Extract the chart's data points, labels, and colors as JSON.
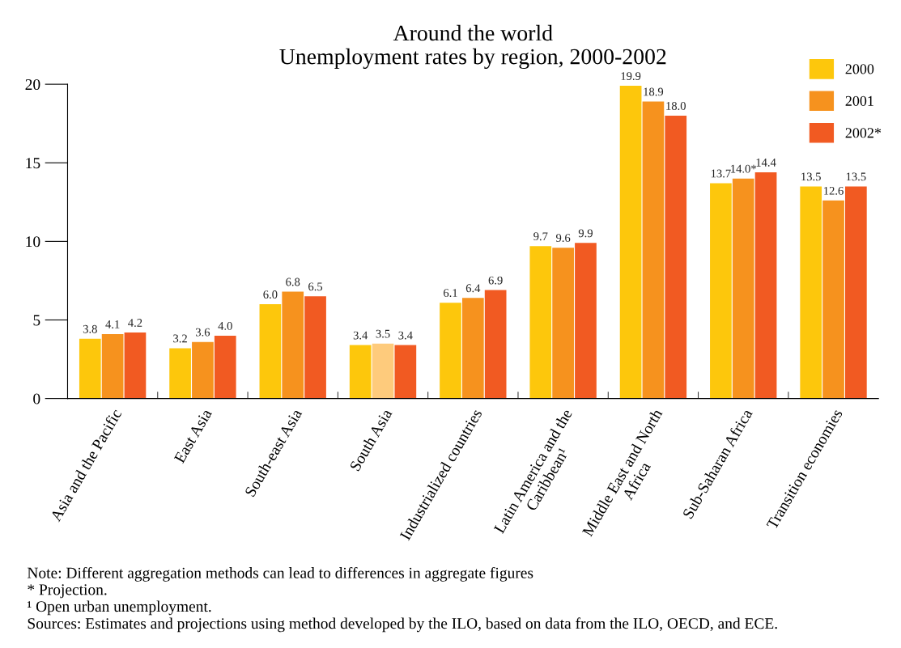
{
  "chart_data": {
    "type": "bar",
    "title": "Around the world\nUnemployment rates by region, 2000-2002",
    "categories": [
      "Asia and the Pacific",
      "East Asia",
      "South-east Asia",
      "South Asia",
      "Industrialized countries",
      "Latin America and the\nCaribbean¹",
      "Middle East and North\nAfrica",
      "Sub-Saharan Africa",
      "Transition economies"
    ],
    "series": [
      {
        "name": "2000",
        "color": "#fdc70c",
        "values": [
          3.8,
          3.2,
          6.0,
          3.4,
          6.1,
          9.7,
          19.9,
          13.7,
          13.5
        ],
        "value_labels": [
          "3.8",
          "3.2",
          "6.0",
          "3.4",
          "6.1",
          "9.7",
          "19.9",
          "13.7",
          "13.5"
        ]
      },
      {
        "name": "2001",
        "color": "#f6921e",
        "colors": [
          "#f6921e",
          "#f6921e",
          "#f6921e",
          "#fecb7c",
          "#f6921e",
          "#f6921e",
          "#f6921e",
          "#f6921e",
          "#f6921e"
        ],
        "values": [
          4.1,
          3.6,
          6.8,
          3.5,
          6.4,
          9.6,
          18.9,
          14.0,
          12.6
        ],
        "value_labels": [
          "4.1",
          "3.6",
          "6.8",
          "3.5",
          "6.4",
          "9.6",
          "18.9",
          "14.0*",
          "12.6"
        ]
      },
      {
        "name": "2002*",
        "color": "#f15a22",
        "values": [
          4.2,
          4.0,
          6.5,
          3.4,
          6.9,
          9.9,
          18.0,
          14.4,
          13.5
        ],
        "value_labels": [
          "4.2",
          "4.0",
          "6.5",
          "3.4",
          "6.9",
          "9.9",
          "18.0",
          "14.4",
          "13.5"
        ]
      }
    ],
    "ylim": [
      0,
      20
    ],
    "yticks": [
      0,
      5,
      10,
      15,
      20
    ],
    "grid": false,
    "legend": "top right",
    "annotations": [
      "Note: Different aggregation methods can lead to differences in aggregate figures",
      "* Projection.",
      "¹ Open urban unemployment.",
      "Sources: Estimates and projections using method developed by the ILO, based on data from the ILO, OECD, and ECE."
    ]
  }
}
